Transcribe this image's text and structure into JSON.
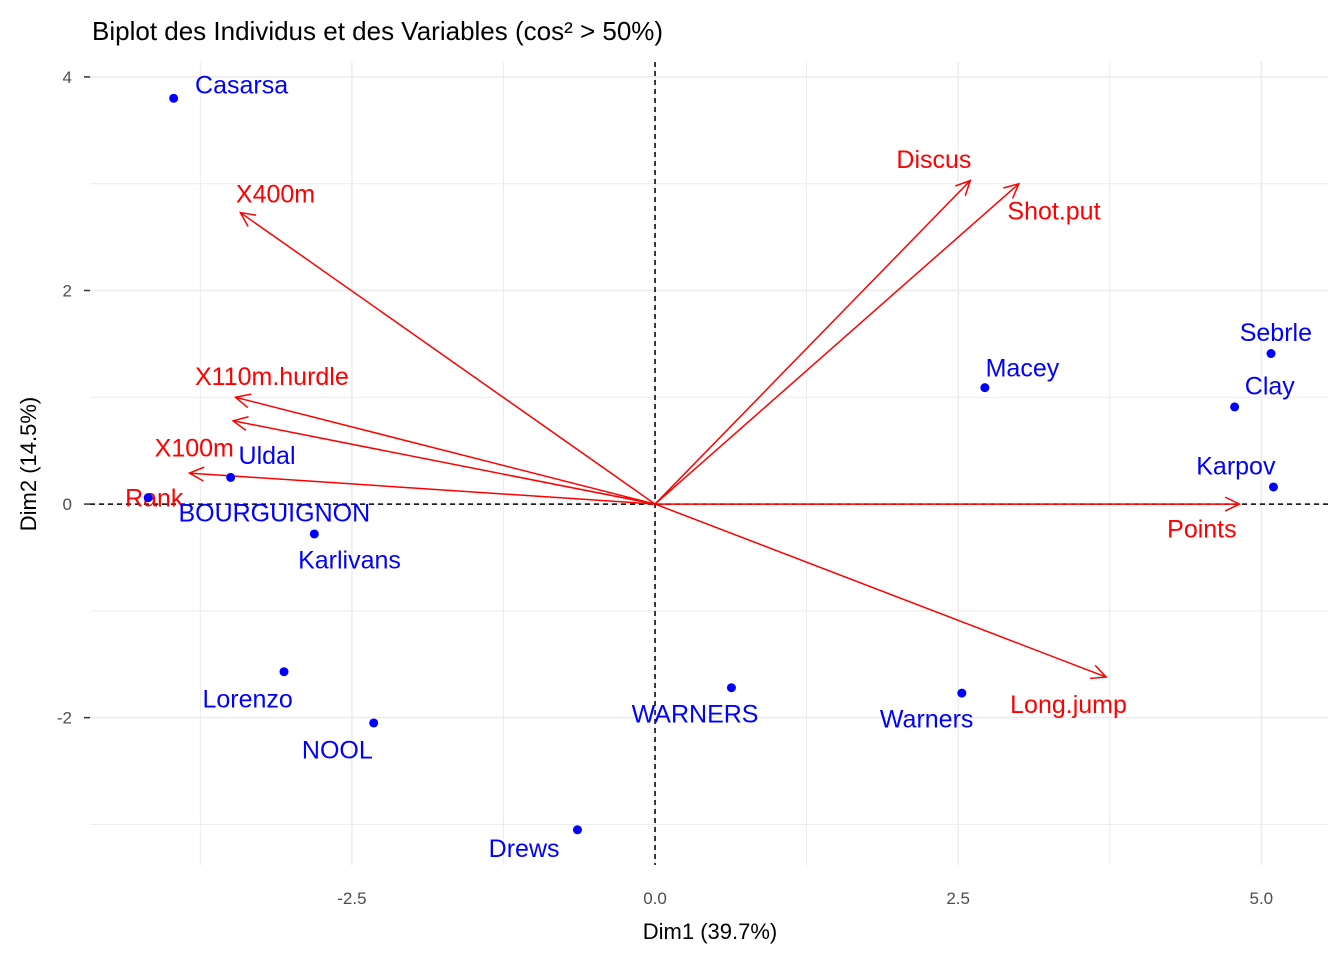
{
  "chart_data": {
    "type": "scatter",
    "title": "Biplot des Individus et des Variables (cos² > 50%)",
    "xlabel": "Dim1 (39.7%)",
    "ylabel": "Dim2 (14.5%)",
    "xlim": [
      -4.66,
      5.55
    ],
    "ylim": [
      -3.38,
      4.14
    ],
    "x_ticks": [
      {
        "v": -2.5,
        "label": "-2.5"
      },
      {
        "v": 0,
        "label": "0.0"
      },
      {
        "v": 2.5,
        "label": "2.5"
      },
      {
        "v": 5,
        "label": "5.0"
      }
    ],
    "y_ticks": [
      {
        "v": -2,
        "label": "-2"
      },
      {
        "v": 0,
        "label": "0"
      },
      {
        "v": 2,
        "label": "2"
      },
      {
        "v": 4,
        "label": "4"
      }
    ],
    "x_minor": [
      -3.75,
      -1.25,
      1.25,
      3.75
    ],
    "y_minor": [
      -3,
      -1,
      1,
      3
    ],
    "grid": true,
    "colors": {
      "individuals": "#0000ff",
      "variables": "#ff0000",
      "grid": "#ebebeb"
    },
    "individuals": [
      {
        "name": "Casarsa",
        "x": -3.97,
        "y": 3.8,
        "lx": -3.41,
        "ly": 3.93
      },
      {
        "name": "Sebrle",
        "x": 5.08,
        "y": 1.41,
        "lx": 5.12,
        "ly": 1.61
      },
      {
        "name": "Clay",
        "x": 4.78,
        "y": 0.91,
        "lx": 5.07,
        "ly": 1.11
      },
      {
        "name": "Macey",
        "x": 2.72,
        "y": 1.09,
        "lx": 3.03,
        "ly": 1.28
      },
      {
        "name": "Karpov",
        "x": 5.1,
        "y": 0.16,
        "lx": 4.79,
        "ly": 0.36
      },
      {
        "name": "Uldal",
        "x": -3.5,
        "y": 0.25,
        "lx": -3.2,
        "ly": 0.46
      },
      {
        "name": "BOURGUIGNON",
        "x": -4.18,
        "y": 0.06,
        "lx": -3.14,
        "ly": -0.08
      },
      {
        "name": "Karlivans",
        "x": -2.81,
        "y": -0.28,
        "lx": -2.52,
        "ly": -0.52
      },
      {
        "name": "Lorenzo",
        "x": -3.06,
        "y": -1.57,
        "lx": -3.36,
        "ly": -1.82
      },
      {
        "name": "NOOL",
        "x": -2.32,
        "y": -2.05,
        "lx": -2.62,
        "ly": -2.3
      },
      {
        "name": "WARNERS",
        "x": 0.63,
        "y": -1.72,
        "lx": 0.33,
        "ly": -1.96
      },
      {
        "name": "Warners",
        "x": 2.53,
        "y": -1.77,
        "lx": 2.24,
        "ly": -2.01
      },
      {
        "name": "Drews",
        "x": -0.64,
        "y": -3.05,
        "lx": -1.08,
        "ly": -3.22
      }
    ],
    "variables": [
      {
        "name": "Discus",
        "x": 2.6,
        "y": 3.03,
        "lx": 2.3,
        "ly": 3.23
      },
      {
        "name": "Shot.put",
        "x": 3.0,
        "y": 3.0,
        "lx": 3.29,
        "ly": 2.75
      },
      {
        "name": "X400m",
        "x": -3.42,
        "y": 2.73,
        "lx": -3.13,
        "ly": 2.91
      },
      {
        "name": "X110m.hurdle",
        "x": -3.46,
        "y": 1.0,
        "lx": -3.16,
        "ly": 1.2
      },
      {
        "name": "X100m",
        "x": -3.48,
        "y": 0.78,
        "lx": -3.8,
        "ly": 0.53
      },
      {
        "name": "Rank",
        "x": -3.84,
        "y": 0.29,
        "lx": -4.13,
        "ly": 0.06
      },
      {
        "name": "Points",
        "x": 4.82,
        "y": 0.0,
        "lx": 4.51,
        "ly": -0.23
      },
      {
        "name": "Long.jump",
        "x": 3.72,
        "y": -1.62,
        "lx": 3.41,
        "ly": -1.87
      }
    ]
  }
}
